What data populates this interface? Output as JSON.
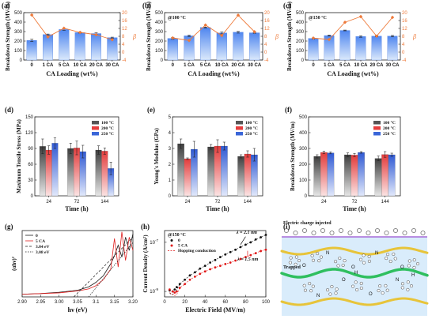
{
  "chart_data": [
    {
      "panel": "(a)",
      "type": "bar",
      "annotation": "",
      "categories": [
        "0",
        "1 CA",
        "5 CA",
        "10 CA",
        "20 CA",
        "30 CA"
      ],
      "values": [
        207,
        268,
        322,
        290,
        279,
        236
      ],
      "errors": [
        12,
        6,
        8,
        6,
        9,
        5
      ],
      "secondary_line": {
        "name": "β",
        "values": [
          18.8,
          7.7,
          12.1,
          10.0,
          8.8,
          6.3
        ]
      },
      "ylabel": "Breakdown Strength (MV/m)",
      "ylabel_right": "β",
      "ylim": [
        0,
        500
      ],
      "yticks": [
        0,
        100,
        200,
        300,
        400,
        500
      ],
      "ylim_right": [
        -4,
        20
      ],
      "yticks_right": [
        -4,
        0,
        4,
        8,
        12,
        16,
        20
      ],
      "xlabel": "CA Loading (wt%)"
    },
    {
      "panel": "(b)",
      "type": "bar",
      "annotation": "@100 °C",
      "categories": [
        "0",
        "1 CA",
        "5 CA",
        "10 CA",
        "20 CA",
        "30 CA"
      ],
      "values": [
        228,
        255,
        343,
        285,
        293,
        287
      ],
      "errors": [
        10,
        8,
        4,
        10,
        9,
        5
      ],
      "secondary_line": {
        "name": "β",
        "values": [
          7.2,
          5.9,
          13.7,
          8.4,
          18.7,
          10.3
        ]
      },
      "ylabel": "Breakdown Strength (MV/m)",
      "ylabel_right": "β",
      "ylim": [
        0,
        500
      ],
      "yticks": [
        0,
        100,
        200,
        300,
        400,
        500
      ],
      "ylim_right": [
        -4,
        20
      ],
      "yticks_right": [
        -4,
        0,
        4,
        8,
        12,
        16,
        20
      ],
      "xlabel": "CA Loading (wt%)"
    },
    {
      "panel": "(c)",
      "type": "bar",
      "annotation": "@150 °C",
      "categories": [
        "0",
        "1 CA",
        "5 CA",
        "10 CA",
        "20 CA",
        "30 CA"
      ],
      "values": [
        228,
        258,
        312,
        248,
        252,
        252
      ],
      "errors": [
        5,
        6,
        4,
        8,
        6,
        7
      ],
      "secondary_line": {
        "name": "β",
        "values": [
          7.1,
          6.4,
          15.1,
          18.0,
          8.1,
          17.6
        ]
      },
      "ylabel": "Breakdown Strength (MV/m)",
      "ylabel_right": "β",
      "ylim": [
        0,
        500
      ],
      "yticks": [
        0,
        100,
        200,
        300,
        400,
        500
      ],
      "ylim_right": [
        -4,
        20
      ],
      "yticks_right": [
        -4,
        0,
        4,
        8,
        12,
        16,
        20
      ],
      "xlabel": "CA Loading (wt%)"
    },
    {
      "panel": "(d)",
      "type": "bar",
      "categories": [
        "24",
        "72",
        "144"
      ],
      "series": [
        {
          "name": "100 °C",
          "values": [
            94,
            90,
            87
          ],
          "errors": [
            14,
            10,
            8
          ]
        },
        {
          "name": "200 °C",
          "values": [
            87,
            91,
            85
          ],
          "errors": [
            8,
            13,
            6
          ]
        },
        {
          "name": "250 °C",
          "values": [
            100,
            84,
            52
          ],
          "errors": [
            10,
            12,
            12
          ]
        }
      ],
      "ylabel": "Maximum Tensile Stress (MPa)",
      "xlabel": "Time (h)",
      "ylim": [
        0,
        150
      ],
      "yticks": [
        0,
        30,
        60,
        90,
        120,
        150
      ]
    },
    {
      "panel": "(e)",
      "type": "bar",
      "categories": [
        "24",
        "72",
        "144"
      ],
      "series": [
        {
          "name": "100 °C",
          "values": [
            3.3,
            3.1,
            2.5
          ],
          "errors": [
            0.3,
            0.15,
            0.1
          ]
        },
        {
          "name": "200 °C",
          "values": [
            2.35,
            3.15,
            2.65
          ],
          "errors": [
            0.05,
            0.4,
            0.2
          ]
        },
        {
          "name": "250 °C",
          "values": [
            2.95,
            3.15,
            2.6
          ],
          "errors": [
            0.5,
            0.25,
            0.4
          ]
        }
      ],
      "ylabel": "Young's Modulus (GPa)",
      "xlabel": "Time (h)",
      "ylim": [
        0,
        5
      ],
      "yticks": [
        0,
        1,
        2,
        3,
        4,
        5
      ]
    },
    {
      "panel": "(f)",
      "type": "bar",
      "categories": [
        "24",
        "72",
        "144"
      ],
      "series": [
        {
          "name": "100 °C",
          "values": [
            250,
            260,
            237
          ],
          "errors": [
            10,
            12,
            15
          ]
        },
        {
          "name": "200 °C",
          "values": [
            275,
            258,
            262
          ],
          "errors": [
            8,
            10,
            18
          ]
        },
        {
          "name": "250 °C",
          "values": [
            272,
            275,
            260
          ],
          "errors": [
            6,
            5,
            10
          ]
        }
      ],
      "ylabel": "Breakdown Strength (MV/m)",
      "xlabel": "Time (h)",
      "ylim": [
        0,
        500
      ],
      "yticks": [
        0,
        100,
        200,
        300,
        400,
        500
      ]
    },
    {
      "panel": "(g)",
      "type": "line",
      "xlabel": "hν (eV)",
      "ylabel": "(αhν)²",
      "xlim": [
        2.9,
        3.2
      ],
      "xticks": [
        2.9,
        2.95,
        3.0,
        3.05,
        3.1,
        3.15,
        3.2
      ],
      "ylim": [
        0,
        1
      ],
      "series": [
        {
          "name": "0",
          "x": [
            2.9,
            2.95,
            3.0,
            3.05,
            3.08,
            3.1,
            3.12,
            3.14,
            3.15,
            3.16,
            3.17,
            3.18,
            3.19,
            3.2
          ],
          "y": [
            0.04,
            0.05,
            0.07,
            0.1,
            0.15,
            0.22,
            0.32,
            0.5,
            0.62,
            0.78,
            0.6,
            0.9,
            0.7,
            0.95
          ]
        },
        {
          "name": "5 CA",
          "x": [
            2.9,
            2.95,
            3.0,
            3.05,
            3.08,
            3.1,
            3.12,
            3.14,
            3.15,
            3.16,
            3.17,
            3.18,
            3.19,
            3.2
          ],
          "y": [
            0.04,
            0.05,
            0.06,
            0.09,
            0.12,
            0.17,
            0.26,
            0.42,
            0.88,
            0.45,
            0.98,
            0.55,
            0.9,
            0.7
          ]
        },
        {
          "name": "3.04 eV",
          "x": [
            3.04,
            3.2
          ],
          "y": [
            0.0,
            0.9
          ]
        },
        {
          "name": "3.08 eV",
          "x": [
            3.08,
            3.2
          ],
          "y": [
            0.0,
            0.82
          ]
        }
      ]
    },
    {
      "panel": "(h)",
      "type": "scatter",
      "annotation": "@150 °C",
      "xlabel": "Electric Field (MV/m)",
      "ylabel": "Current Density (A/cm²)",
      "xlim": [
        0,
        100
      ],
      "xticks": [
        0,
        20,
        40,
        60,
        80,
        100
      ],
      "yscale": "log",
      "ylim": [
        6e-10,
        3e-07
      ],
      "yticks": [
        1e-09,
        1e-07
      ],
      "series": [
        {
          "name": "0",
          "x": [
            5,
            8,
            10,
            12,
            15,
            20,
            25,
            30,
            35,
            40,
            45,
            50,
            55,
            60,
            65,
            70,
            75,
            80,
            85,
            90,
            95,
            100
          ],
          "y": [
            1.1e-09,
            1e-09,
            1.2e-09,
            1.5e-09,
            2e-09,
            3e-09,
            4.5e-09,
            6e-09,
            8.5e-09,
            1.1e-08,
            1.5e-08,
            1.9e-08,
            2.5e-08,
            3.2e-08,
            4e-08,
            5e-08,
            6.4e-08,
            8e-08,
            1e-07,
            1.3e-07,
            1.6e-07,
            2e-07
          ]
        },
        {
          "name": "5 CA",
          "x": [
            5,
            8,
            10,
            12,
            15,
            20,
            25,
            30,
            35,
            40,
            45,
            50,
            55,
            60,
            65,
            70,
            75,
            80,
            85,
            90,
            95,
            100
          ],
          "y": [
            1.2e-09,
            1e-09,
            9e-10,
            1e-09,
            1.4e-09,
            2e-09,
            3e-09,
            4e-09,
            5.2e-09,
            6.5e-09,
            8e-09,
            9.5e-09,
            1.1e-08,
            1.3e-08,
            1.5e-08,
            1.8e-08,
            2.1e-08,
            2.5e-08,
            3e-08,
            3.6e-08,
            4.4e-08,
            5e-08
          ]
        },
        {
          "name": "Hopping conduction",
          "style": "dashed"
        }
      ],
      "annotations": [
        {
          "text": "λ = 2.1 nm",
          "color": "#111111"
        },
        {
          "text": "λ = 1.5 nm",
          "color": "#e01818"
        }
      ]
    },
    {
      "panel": "(i)",
      "type": "diagram",
      "labels": [
        "Electric charge injected",
        "Trapped",
        "O",
        "N",
        "H"
      ]
    }
  ],
  "colors": {
    "bar_fill": "#5b8ff0",
    "bar_fill_light": "#d8e8fb",
    "beta_line": "#ee7a3a",
    "gray_series": "#555555",
    "red_series": "#e53d3d",
    "blue_series": "#3a66d8",
    "chain_yellow": "#e7c43a",
    "chain_green": "#2fbf5f",
    "diagram_bg": "#d9ecfb",
    "electrode": "#a56ad8"
  }
}
